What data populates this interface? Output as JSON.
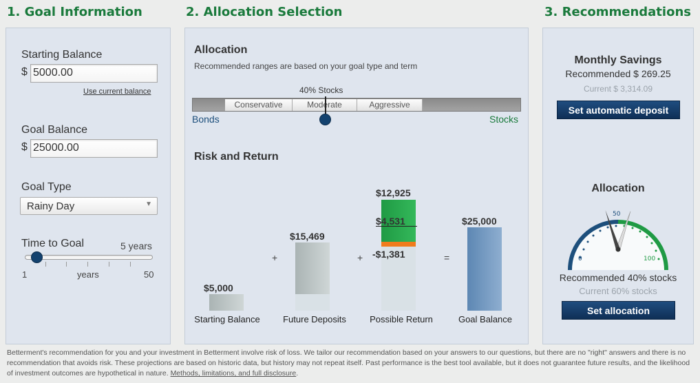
{
  "sections": {
    "goal_info_title": "1. Goal Information",
    "allocation_title": "2. Allocation Selection",
    "recommendations_title": "3. Recommendations"
  },
  "goal_info": {
    "starting_balance_label": "Starting Balance",
    "currency_symbol": "$",
    "starting_balance_value": "5000.00",
    "use_current_balance_link": "Use current balance",
    "goal_balance_label": "Goal Balance",
    "goal_balance_value": "25000.00",
    "goal_type_label": "Goal Type",
    "goal_type_selected": "Rainy Day",
    "time_to_goal_label": "Time to Goal",
    "time_to_goal_value": "5 years",
    "slider_min": "1",
    "slider_unit": "years",
    "slider_max": "50",
    "slider_level": 5
  },
  "allocation": {
    "heading": "Allocation",
    "subtitle": "Recommended ranges are based on your goal type and term",
    "stocks_marker_label": "40% Stocks",
    "ranges": [
      "Conservative",
      "Moderate",
      "Aggressive"
    ],
    "bonds_label": "Bonds",
    "stocks_label": "Stocks",
    "stocks_percent": 40
  },
  "risk_return": {
    "heading": "Risk and Return",
    "plus_sign": "+",
    "equals_sign": "=",
    "bars": [
      {
        "label": "Starting Balance",
        "value_label": "$5,000",
        "value": 5000
      },
      {
        "label": "Future Deposits",
        "value_label": "$15,469",
        "value": 15469
      },
      {
        "label": "Possible Return",
        "upper_label": "$12,925",
        "mid_label": "$4,531",
        "lower_label": "-$1,381"
      },
      {
        "label": "Goal Balance",
        "value_label": "$25,000",
        "value": 25000
      }
    ]
  },
  "recommendations": {
    "monthly_savings_heading": "Monthly Savings",
    "recommended_savings": "Recommended $ 269.25",
    "current_savings": "Current $ 3,314.09",
    "set_deposit_button": "Set automatic deposit",
    "allocation_heading": "Allocation",
    "gauge_min": "0",
    "gauge_mid": "50",
    "gauge_max": "100",
    "recommended_value": 40,
    "current_value": 60,
    "recommended_allocation": "Recommended 40% stocks",
    "current_allocation": "Current 60% stocks",
    "set_allocation_button": "Set allocation"
  },
  "footer": {
    "text": "Betterment's recommendation for you and your investment in Betterment involve risk of loss. We tailor our recommendation based on your answers to our questions, but there are no \"right\" answers and there is no recommendation that avoids risk. These projections are based on historic data, but history may not repeat itself. Past performance is the best tool available, but it does not guarantee future results, and the likelihood of investment outcomes are hypothetical in nature.",
    "disclosure_link": "Methods, limitations, and full disclosure",
    "disclosure_suffix": "."
  },
  "colors": {
    "title_green": "#1a7a3c",
    "button_navy": "#13426f",
    "stock_green": "#27a84a",
    "loss_orange": "#f07c1c",
    "goal_blue": "#6f97c0"
  }
}
